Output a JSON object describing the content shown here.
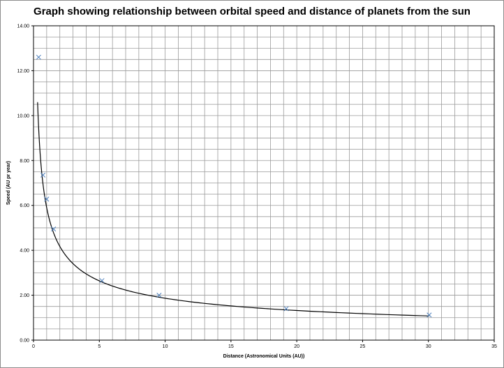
{
  "chart_data": {
    "type": "scatter",
    "title": "Graph showing relationship between orbital speed and distance of planets from the sun",
    "xlabel": "Distance (Astronomical Units (AU))",
    "ylabel": "Speed (AU pr year)",
    "xlim": [
      0,
      35
    ],
    "ylim": [
      0,
      14
    ],
    "xticks": [
      "0",
      "5",
      "10",
      "15",
      "20",
      "25",
      "30",
      "35"
    ],
    "yticks": [
      "0.00",
      "2.00",
      "4.00",
      "6.00",
      "8.00",
      "10.00",
      "12.00",
      "14.00"
    ],
    "grid": true,
    "series": [
      {
        "marker": "x",
        "color": "#4f81bd",
        "points": [
          {
            "x": 0.39,
            "y": 12.6
          },
          {
            "x": 0.72,
            "y": 7.35
          },
          {
            "x": 1.0,
            "y": 6.28
          },
          {
            "x": 1.52,
            "y": 4.95
          },
          {
            "x": 5.2,
            "y": 2.65
          },
          {
            "x": 9.54,
            "y": 2.0
          },
          {
            "x": 19.2,
            "y": 1.4
          },
          {
            "x": 30.06,
            "y": 1.12
          }
        ]
      }
    ],
    "trendline": {
      "type": "power",
      "coefficient": 5.9,
      "exponent": -0.5,
      "x_range": [
        0.31,
        30.06
      ],
      "color": "#000000"
    }
  }
}
